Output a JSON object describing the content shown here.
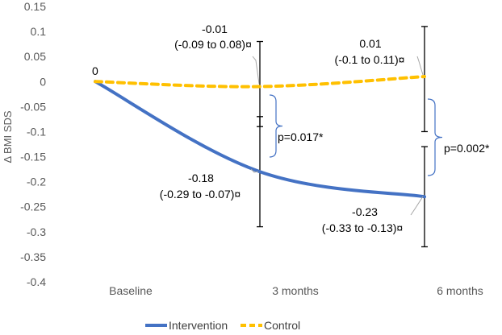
{
  "chart_data": {
    "type": "line",
    "title": "",
    "xlabel": "",
    "ylabel": "Δ BMI SDS",
    "categories": [
      "Baseline",
      "3 months",
      "6 months"
    ],
    "ylim": [
      -0.4,
      0.15
    ],
    "yticks": [
      0.15,
      0.1,
      0.05,
      0,
      -0.05,
      -0.1,
      -0.15,
      -0.2,
      -0.25,
      -0.3,
      -0.35,
      -0.4
    ],
    "ytick_labels": [
      "0.15",
      "0.1",
      "0.05",
      "0",
      "-0.05",
      "-0.1",
      "-0.15",
      "-0.2",
      "-0.25",
      "-0.3",
      "-0.35",
      "-0.4"
    ],
    "grid": false,
    "legend_position": "bottom",
    "series": [
      {
        "name": "Intervention",
        "color": "#4472C4",
        "style": "solid",
        "values": [
          0,
          -0.18,
          -0.23
        ],
        "ci_low": [
          null,
          -0.29,
          -0.33
        ],
        "ci_high": [
          null,
          -0.07,
          -0.13
        ]
      },
      {
        "name": "Control",
        "color": "#FFC000",
        "style": "dashed",
        "values": [
          0,
          -0.01,
          0.01
        ],
        "ci_low": [
          null,
          -0.09,
          -0.1
        ],
        "ci_high": [
          null,
          0.08,
          0.11
        ]
      }
    ],
    "annotations": {
      "baseline": "0",
      "intervention_3m_value": "-0.18",
      "intervention_3m_ci": "(-0.29 to -0.07)¤",
      "intervention_6m_value": "-0.23",
      "intervention_6m_ci": "(-0.33 to -0.13)¤",
      "control_3m_value": "-0.01",
      "control_3m_ci": "(-0.09 to 0.08)¤",
      "control_6m_value": "0.01",
      "control_6m_ci": "(-0.1 to 0.11)¤",
      "p_3m": "p=0.017*",
      "p_6m": "p=0.002*"
    }
  }
}
